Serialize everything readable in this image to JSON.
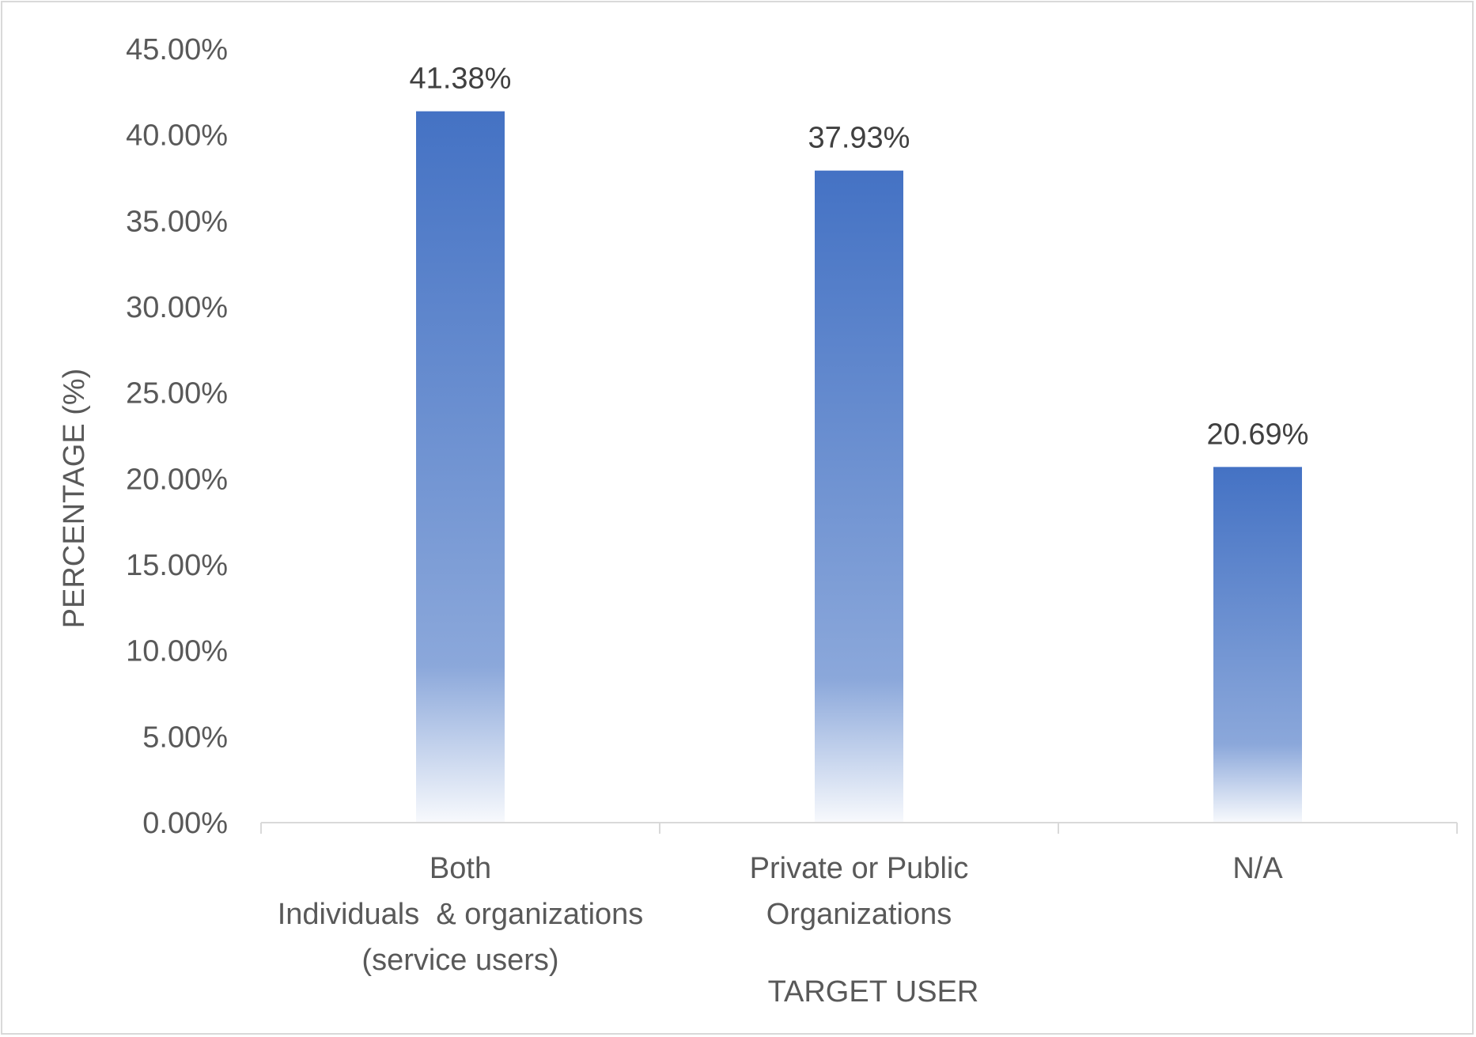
{
  "chart_data": {
    "type": "bar",
    "title": "",
    "xlabel": "TARGET USER",
    "ylabel": "PERCENTAGE (%)",
    "ylim": [
      0,
      45
    ],
    "y_ticks": [
      "0.00%",
      "5.00%",
      "10.00%",
      "15.00%",
      "20.00%",
      "25.00%",
      "30.00%",
      "35.00%",
      "40.00%",
      "45.00%"
    ],
    "categories": [
      "Both Individuals & organizations (service users)",
      "Private or Public Organizations",
      "N/A"
    ],
    "category_lines": [
      [
        "Both",
        "Individuals  & organizations",
        "(service users)"
      ],
      [
        "Private or Public",
        "Organizations"
      ],
      [
        "N/A"
      ]
    ],
    "values": [
      41.38,
      37.93,
      20.69
    ],
    "data_labels": [
      "41.38%",
      "37.93%",
      "20.69%"
    ],
    "grid": false,
    "legend": "none",
    "colors": {
      "bar_top": "#4472c4",
      "bar_bottom": "#ffffff",
      "axis_line": "#d9d9d9",
      "tick_text": "#595959",
      "label_text": "#404040"
    }
  }
}
